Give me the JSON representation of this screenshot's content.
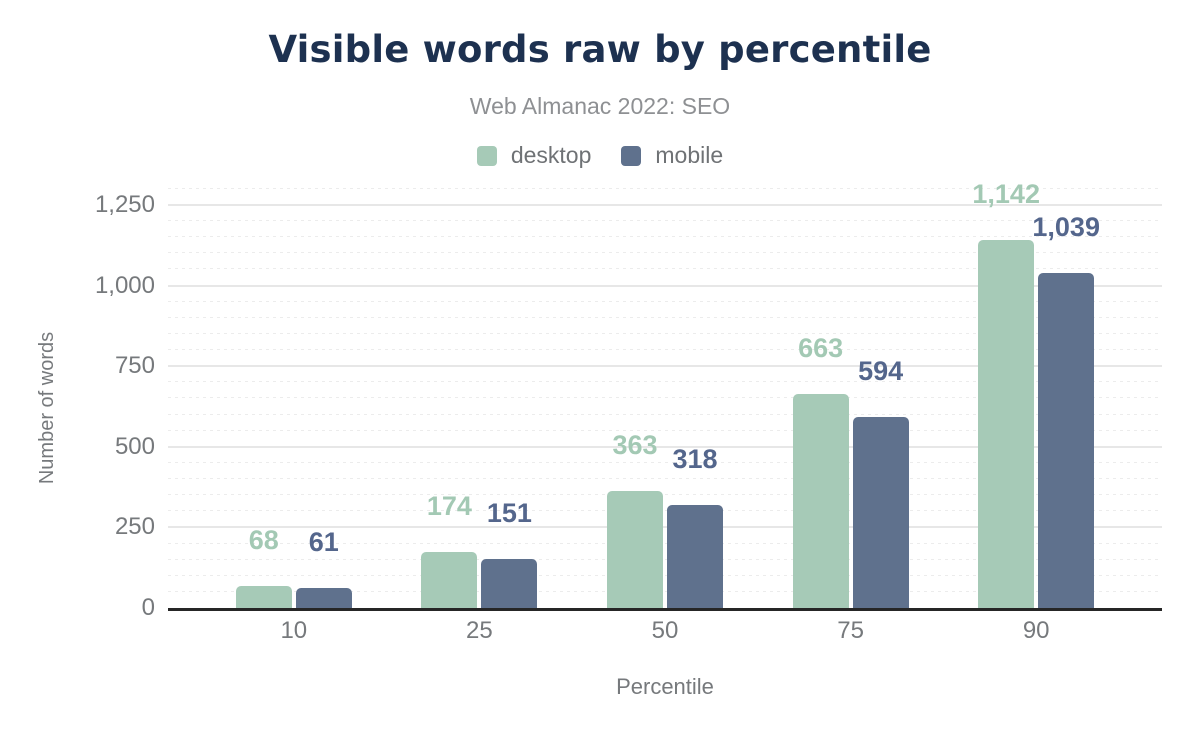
{
  "chart_data": {
    "type": "bar",
    "title": "Visible words raw by percentile",
    "subtitle": "Web Almanac 2022: SEO",
    "xlabel": "Percentile",
    "ylabel": "Number of words",
    "categories": [
      "10",
      "25",
      "50",
      "75",
      "90"
    ],
    "series": [
      {
        "name": "desktop",
        "color": "#a6cab7",
        "label_color": "#a3c9b4",
        "values": [
          68,
          174,
          363,
          663,
          1142
        ],
        "value_labels": [
          "68",
          "174",
          "363",
          "663",
          "1,142"
        ]
      },
      {
        "name": "mobile",
        "color": "#5f718d",
        "label_color": "#54668c",
        "values": [
          61,
          151,
          318,
          594,
          1039
        ],
        "value_labels": [
          "61",
          "151",
          "318",
          "594",
          "1,039"
        ]
      }
    ],
    "ylim": [
      0,
      1250
    ],
    "yticks": [
      0,
      250,
      500,
      750,
      1000,
      1250
    ],
    "ytick_labels": [
      "0",
      "250",
      "500",
      "750",
      "1,000",
      "1,250"
    ],
    "minor_tick_interval": 50,
    "grid": "on",
    "legend_position": "top",
    "colors": {
      "title": "#1d3150",
      "subtitle": "#8e9093",
      "axis_text": "#76797c",
      "axis_line": "#262626",
      "major_grid": "#e7e7e7",
      "minor_grid": "#ececec",
      "background": "#ffffff"
    }
  }
}
